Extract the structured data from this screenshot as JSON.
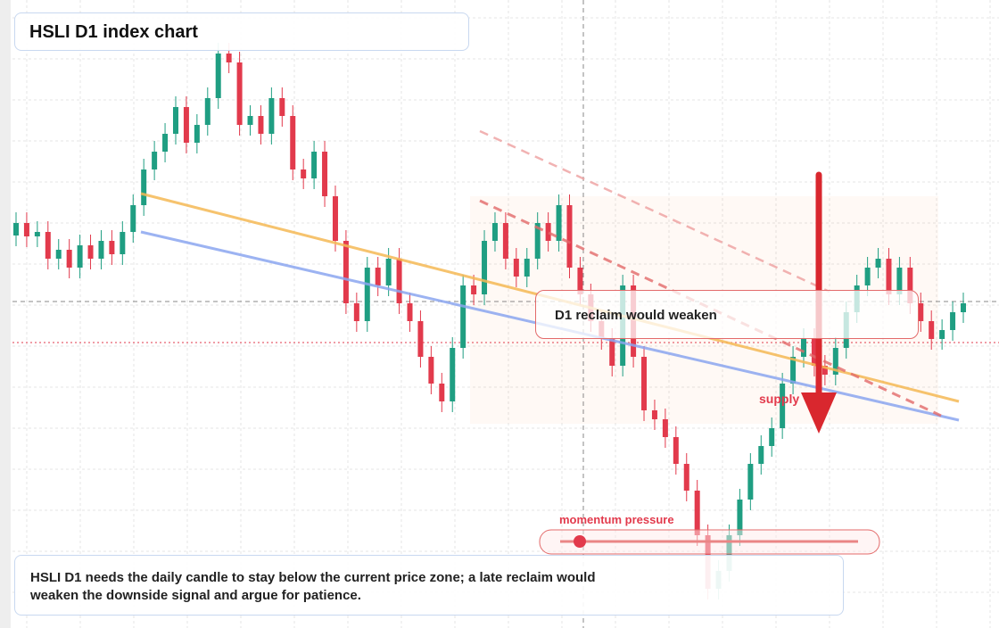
{
  "chart_data": {
    "type": "candlestick",
    "title": "HSLI D1 index chart",
    "annotations": [
      "D1 reclaim would weaken",
      "supply",
      "momentum pressure"
    ],
    "caption": "HSLI D1 needs the daily candle to stay below the current price zone; a late reclaim would weaken the downside signal and argue for patience.",
    "up_color": "#1f9e82",
    "down_color": "#e23a4c",
    "grid": true,
    "ylim": [
      0,
      704
    ],
    "open": [
      440,
      454,
      439,
      444,
      414,
      424,
      404,
      429,
      414,
      434,
      419,
      444,
      474,
      514,
      534,
      554,
      584,
      544,
      564,
      594,
      644,
      634,
      564,
      574,
      554,
      594,
      574,
      514,
      504,
      534,
      484,
      434,
      364,
      344,
      404,
      384,
      414,
      364,
      344,
      304,
      274,
      254,
      314,
      384,
      374,
      434,
      454,
      414,
      394,
      414,
      454,
      434,
      474,
      404,
      374,
      344,
      324,
      294,
      384,
      304,
      244,
      234,
      214,
      184,
      154,
      104,
      44,
      64,
      104,
      144,
      184,
      204,
      224,
      274,
      304,
      324,
      294,
      284,
      314,
      354,
      384,
      404,
      414,
      374,
      404,
      364,
      344,
      324,
      334,
      354
    ],
    "high": [
      466,
      466,
      456,
      456,
      436,
      436,
      441,
      441,
      446,
      446,
      456,
      486,
      526,
      546,
      566,
      596,
      596,
      576,
      606,
      656,
      656,
      646,
      586,
      586,
      606,
      606,
      586,
      526,
      546,
      546,
      496,
      446,
      376,
      416,
      416,
      426,
      426,
      376,
      356,
      316,
      286,
      326,
      396,
      396,
      446,
      466,
      466,
      426,
      426,
      466,
      466,
      486,
      486,
      416,
      386,
      356,
      336,
      396,
      396,
      316,
      256,
      246,
      226,
      196,
      166,
      116,
      76,
      116,
      156,
      196,
      216,
      236,
      286,
      316,
      336,
      336,
      306,
      326,
      366,
      396,
      416,
      426,
      426,
      416,
      416,
      376,
      356,
      346,
      366,
      376
    ],
    "low": [
      428,
      427,
      427,
      402,
      402,
      392,
      392,
      402,
      402,
      407,
      407,
      432,
      462,
      502,
      522,
      542,
      532,
      532,
      552,
      582,
      622,
      552,
      552,
      542,
      542,
      562,
      502,
      492,
      492,
      472,
      422,
      352,
      332,
      332,
      372,
      372,
      352,
      332,
      292,
      262,
      242,
      242,
      302,
      362,
      362,
      422,
      402,
      382,
      382,
      402,
      422,
      422,
      392,
      362,
      332,
      312,
      282,
      282,
      292,
      232,
      222,
      202,
      172,
      142,
      92,
      32,
      32,
      52,
      92,
      132,
      172,
      192,
      212,
      262,
      292,
      282,
      272,
      272,
      302,
      342,
      372,
      392,
      362,
      362,
      352,
      332,
      312,
      312,
      322,
      342
    ],
    "close": [
      454,
      439,
      444,
      414,
      424,
      404,
      429,
      414,
      434,
      419,
      444,
      474,
      514,
      534,
      554,
      584,
      544,
      564,
      594,
      644,
      634,
      564,
      574,
      554,
      594,
      574,
      514,
      504,
      534,
      484,
      434,
      364,
      344,
      404,
      384,
      414,
      364,
      344,
      304,
      274,
      254,
      314,
      384,
      374,
      434,
      454,
      414,
      394,
      414,
      454,
      434,
      474,
      404,
      374,
      344,
      324,
      294,
      384,
      304,
      244,
      234,
      214,
      184,
      154,
      104,
      44,
      64,
      104,
      144,
      184,
      204,
      224,
      274,
      304,
      324,
      294,
      284,
      314,
      354,
      384,
      404,
      414,
      374,
      404,
      364,
      344,
      324,
      334,
      354,
      364
    ]
  }
}
